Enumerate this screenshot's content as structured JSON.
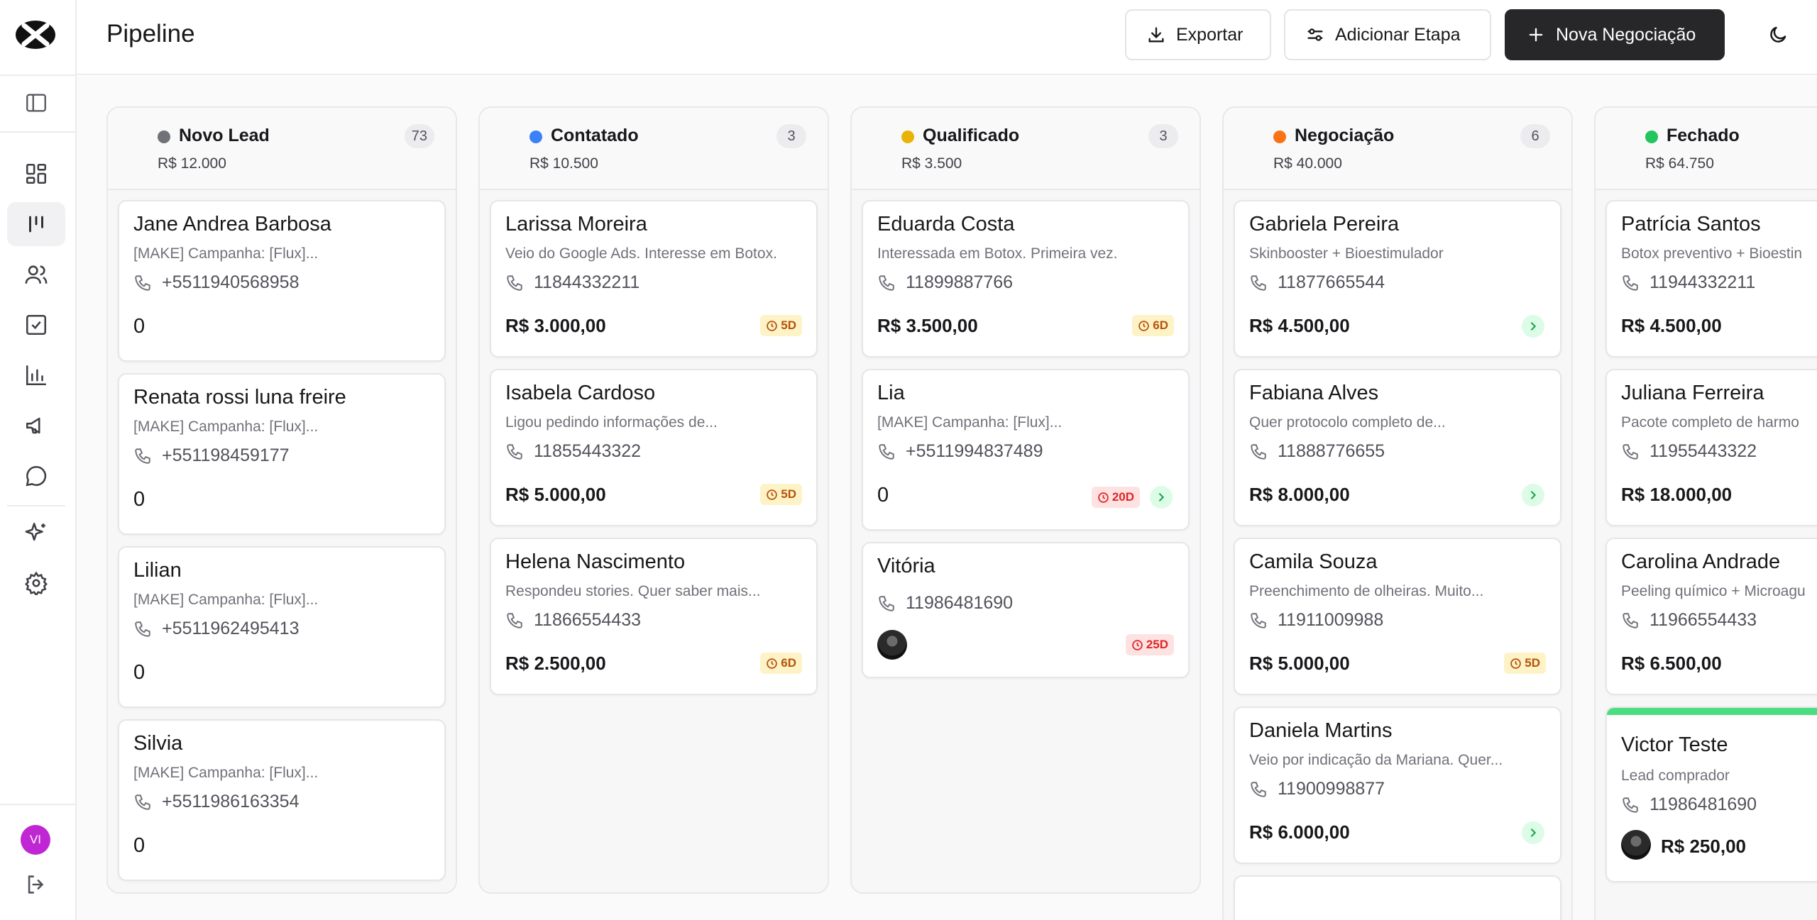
{
  "header": {
    "title": "Pipeline",
    "export_label": "Exportar",
    "add_stage_label": "Adicionar Etapa",
    "new_deal_label": "Nova Negociação"
  },
  "sidebar": {
    "items": [
      {
        "name": "dashboard-icon"
      },
      {
        "name": "kanban-icon",
        "active": true
      },
      {
        "name": "users-icon"
      },
      {
        "name": "tasks-icon"
      },
      {
        "name": "reports-icon"
      },
      {
        "name": "megaphone-icon"
      },
      {
        "name": "chat-icon"
      },
      {
        "name": "sparkles-icon"
      },
      {
        "name": "settings-icon"
      }
    ],
    "avatar_initials": "VI"
  },
  "colors": {
    "novo_lead": "#71717a",
    "contatado": "#3b82f6",
    "qualificado": "#eab308",
    "negociacao": "#f97316",
    "fechado": "#22c55e"
  },
  "columns": [
    {
      "title": "Novo Lead",
      "count": "73",
      "total": "R$ 12.000",
      "cards": [
        {
          "name": "Jane Andrea Barbosa",
          "desc": "[MAKE] Campanha: [Flux]...",
          "phone": "+5511940568958",
          "value": "0"
        },
        {
          "name": "Renata rossi luna freire",
          "desc": "[MAKE] Campanha: [Flux]...",
          "phone": "+551198459177",
          "value": "0"
        },
        {
          "name": "Lilian",
          "desc": "[MAKE] Campanha: [Flux]...",
          "phone": "+5511962495413",
          "value": "0"
        },
        {
          "name": "Silvia",
          "desc": "[MAKE] Campanha: [Flux]...",
          "phone": "+5511986163354",
          "value": "0"
        }
      ]
    },
    {
      "title": "Contatado",
      "count": "3",
      "total": "R$ 10.500",
      "cards": [
        {
          "name": "Larissa Moreira",
          "desc": "Veio do Google Ads. Interesse em Botox.",
          "phone": "11844332211",
          "value": "R$ 3.000,00",
          "badge": "5D"
        },
        {
          "name": "Isabela Cardoso",
          "desc": "Ligou pedindo informações de...",
          "phone": "11855443322",
          "value": "R$ 5.000,00",
          "badge": "5D"
        },
        {
          "name": "Helena Nascimento",
          "desc": "Respondeu stories. Quer saber mais...",
          "phone": "11866554433",
          "value": "R$ 2.500,00",
          "badge": "6D"
        }
      ]
    },
    {
      "title": "Qualificado",
      "count": "3",
      "total": "R$ 3.500",
      "cards": [
        {
          "name": "Eduarda Costa",
          "desc": "Interessada em Botox. Primeira vez.",
          "phone": "11899887766",
          "value": "R$ 3.500,00",
          "badge": "6D"
        },
        {
          "name": "Lia",
          "desc": "[MAKE] Campanha: [Flux]...",
          "phone": "+5511994837489",
          "value": "0",
          "badge": "20D"
        },
        {
          "name": "Vitória",
          "phone": "11986481690",
          "badge": "25D"
        }
      ]
    },
    {
      "title": "Negociação",
      "count": "6",
      "total": "R$ 40.000",
      "cards": [
        {
          "name": "Gabriela Pereira",
          "desc": "Skinbooster + Bioestimulador",
          "phone": "11877665544",
          "value": "R$ 4.500,00"
        },
        {
          "name": "Fabiana Alves",
          "desc": "Quer protocolo completo de...",
          "phone": "11888776655",
          "value": "R$ 8.000,00"
        },
        {
          "name": "Camila Souza",
          "desc": "Preenchimento de olheiras. Muito...",
          "phone": "11911009988",
          "value": "R$ 5.000,00",
          "badge": "5D"
        },
        {
          "name": "Daniela Martins",
          "desc": "Veio por indicação da Mariana. Quer...",
          "phone": "11900998877",
          "value": "R$ 6.000,00"
        }
      ]
    },
    {
      "title": "Fechado",
      "total": "R$ 64.750",
      "cards": [
        {
          "name": "Patrícia Santos",
          "desc": "Botox preventivo + Bioestin",
          "phone": "11944332211",
          "value": "R$ 4.500,00"
        },
        {
          "name": "Juliana Ferreira",
          "desc": "Pacote completo de harmo",
          "phone": "11955443322",
          "value": "R$ 18.000,00"
        },
        {
          "name": "Carolina Andrade",
          "desc": "Peeling químico + Microagu",
          "phone": "11966554433",
          "value": "R$ 6.500,00"
        },
        {
          "name": "Victor Teste",
          "desc": "Lead comprador",
          "phone": "11986481690",
          "value": "R$ 250,00"
        }
      ]
    }
  ]
}
